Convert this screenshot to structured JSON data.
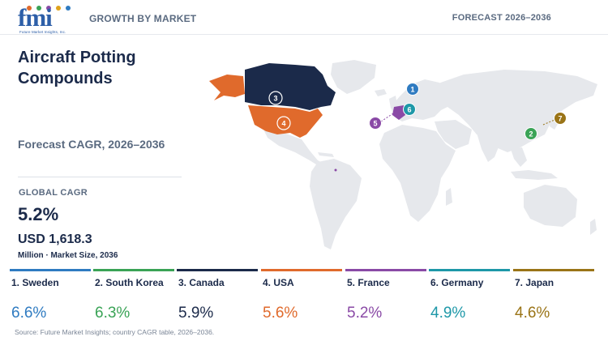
{
  "header": {
    "logo_text": "fmi",
    "logo_subtext": "Future Market Insights, Inc.",
    "growth_label": "GROWTH BY MARKET",
    "forecast_label": "FORECAST 2026–2036"
  },
  "title": "Aircraft Potting Compounds",
  "cagr_label": "Forecast CAGR, 2026–2036",
  "global": {
    "label": "GLOBAL CAGR",
    "value": "5.2%",
    "market_size": "USD 1,618.3",
    "market_unit": "Million · Market Size, 2036"
  },
  "countries": [
    {
      "rank": "1",
      "name": "1. Sweden",
      "cagr": "6.6%",
      "color": "#2f7bc1"
    },
    {
      "rank": "2",
      "name": "2. South Korea",
      "cagr": "6.3%",
      "color": "#3aa356"
    },
    {
      "rank": "3",
      "name": "3. Canada",
      "cagr": "5.9%",
      "color": "#1b2a4a"
    },
    {
      "rank": "4",
      "name": "4. USA",
      "cagr": "5.6%",
      "color": "#e06a2c"
    },
    {
      "rank": "5",
      "name": "5. France",
      "cagr": "5.2%",
      "color": "#8a4aa6"
    },
    {
      "rank": "6",
      "name": "6. Germany",
      "cagr": "4.9%",
      "color": "#1e98a8"
    },
    {
      "rank": "7",
      "name": "7. Japan",
      "cagr": "4.6%",
      "color": "#9a7417"
    }
  ],
  "map_colors": {
    "land": "#e6e8ec",
    "canada": "#1b2a4a",
    "usa": "#e06a2c",
    "alaska": "#e06a2c",
    "france": "#8a4aa6"
  },
  "source": "Source: Future Market Insights; country CAGR table, 2026–2036."
}
